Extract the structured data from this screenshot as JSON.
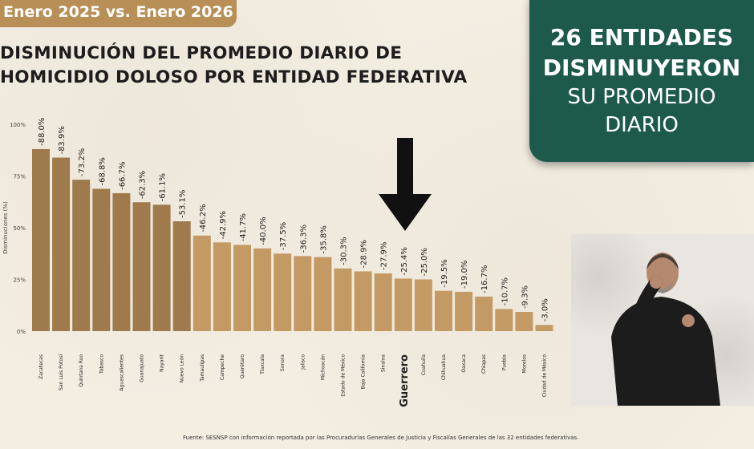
{
  "header": {
    "period": "Enero 2025 vs. Enero 2026",
    "title_line1": "DISMINUCIÓN DEL PROMEDIO DIARIO DE",
    "title_line2": "HOMICIDIO DOLOSO POR ENTIDAD FEDERATIVA"
  },
  "summary": {
    "line1": "26 ENTIDADES",
    "line2": "DISMINUYERON",
    "line3": "SU PROMEDIO",
    "line4": "DIARIO"
  },
  "colors": {
    "bar_dark": "#9e7a4c",
    "bar_light": "#c49a64",
    "card": "#1e5a4c"
  },
  "icons": {
    "pointer": "down-arrow-icon"
  },
  "source": "Fuente: SESNSP con información reportada por las Procuradurías Generales de Justicia y Fiscalías Generales de las 32 entidades federativas.",
  "chart_data": {
    "type": "bar",
    "ylabel": "Disminuciones (%)",
    "ylim": [
      0,
      100
    ],
    "yticks": [
      "0%",
      "25%",
      "50%",
      "75%",
      "100%"
    ],
    "categories": [
      "Zacatecas",
      "San Luis Potosí",
      "Quintana Roo",
      "Tabasco",
      "Aguascalientes",
      "Guanajuato",
      "Nayarit",
      "Nuevo León",
      "Tamaulipas",
      "Campeche",
      "Querétaro",
      "Tlaxcala",
      "Sonora",
      "Jalisco",
      "Michoacán",
      "Estado de México",
      "Baja California",
      "Sinaloa",
      "Guerrero",
      "Coahuila",
      "Chihuahua",
      "Oaxaca",
      "Chiapas",
      "Puebla",
      "Morelos",
      "Ciudad de México"
    ],
    "values": [
      88.0,
      83.9,
      73.2,
      68.8,
      66.7,
      62.3,
      61.1,
      53.1,
      46.2,
      42.9,
      41.7,
      40.0,
      37.5,
      36.3,
      35.8,
      30.3,
      28.9,
      27.9,
      25.4,
      25.0,
      19.5,
      19.0,
      16.7,
      10.7,
      9.3,
      3.0
    ],
    "labels": [
      "-88.0%",
      "-83.9%",
      "-73.2%",
      "-68.8%",
      "-66.7%",
      "-62.3%",
      "-61.1%",
      "-53.1%",
      "-46.2%",
      "-42.9%",
      "-41.7%",
      "-40.0%",
      "-37.5%",
      "-36.3%",
      "-35.8%",
      "-30.3%",
      "-28.9%",
      "-27.9%",
      "-25.4%",
      "-25.0%",
      "-19.5%",
      "-19.0%",
      "-16.7%",
      "-10.7%",
      "-9.3%",
      "-3.0%"
    ],
    "highlight": "Guerrero",
    "dark_bars": 8,
    "grid": false,
    "legend": "none"
  }
}
